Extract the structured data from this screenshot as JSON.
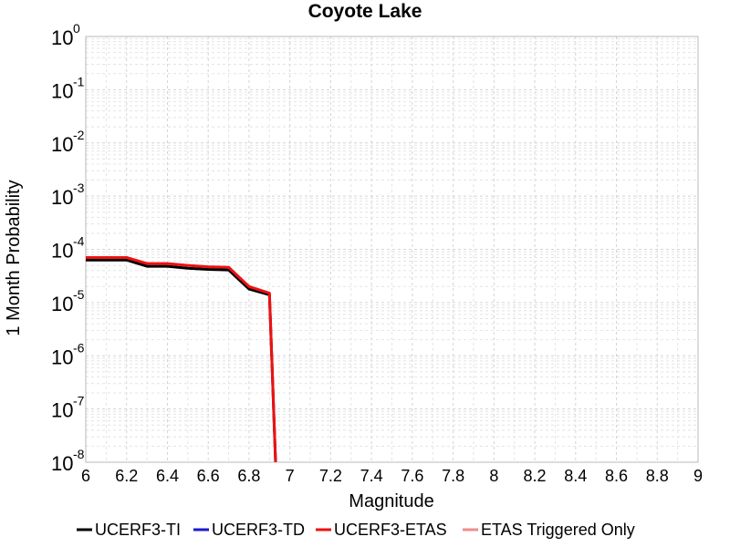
{
  "chart_data": {
    "type": "line",
    "title": "Coyote Lake",
    "xlabel": "Magnitude",
    "ylabel": "1 Month Probability",
    "xlim": [
      6,
      9
    ],
    "ylim": [
      1e-08,
      1
    ],
    "yscale": "log",
    "grid": true,
    "legend_position": "bottom",
    "x_ticks": [
      6,
      6.2,
      6.4,
      6.6,
      6.8,
      7,
      7.2,
      7.4,
      7.6,
      7.8,
      8,
      8.2,
      8.4,
      8.6,
      8.8,
      9
    ],
    "x_tick_labels": [
      "6",
      "6.2",
      "6.4",
      "6.6",
      "6.8",
      "7",
      "7.2",
      "7.4",
      "7.6",
      "7.8",
      "8",
      "8.2",
      "8.4",
      "8.6",
      "8.8",
      "9"
    ],
    "y_tick_exponents": [
      0,
      -1,
      -2,
      -3,
      -4,
      -5,
      -6,
      -7,
      -8
    ],
    "y_tick_base": "10",
    "series": [
      {
        "name": "UCERF3-TI",
        "color": "#000000",
        "x": [
          6.0,
          6.2,
          6.3,
          6.4,
          6.5,
          6.6,
          6.7,
          6.8,
          6.9,
          6.93
        ],
        "y": [
          6.3e-05,
          6.3e-05,
          4.8e-05,
          4.8e-05,
          4.4e-05,
          4.2e-05,
          4.1e-05,
          1.8e-05,
          1.4e-05,
          1e-08
        ]
      },
      {
        "name": "UCERF3-TD",
        "color": "#1a1ad0",
        "x": [
          6.0,
          6.2,
          6.3,
          6.4,
          6.5,
          6.6,
          6.7,
          6.8,
          6.9,
          6.93
        ],
        "y": [
          7e-05,
          7e-05,
          5.4e-05,
          5.4e-05,
          5e-05,
          4.7e-05,
          4.6e-05,
          2e-05,
          1.5e-05,
          1e-08
        ]
      },
      {
        "name": "UCERF3-ETAS",
        "color": "#ee1111",
        "x": [
          6.0,
          6.2,
          6.3,
          6.4,
          6.5,
          6.6,
          6.7,
          6.8,
          6.9,
          6.93
        ],
        "y": [
          7e-05,
          7e-05,
          5.4e-05,
          5.4e-05,
          5e-05,
          4.7e-05,
          4.6e-05,
          2e-05,
          1.5e-05,
          1e-08
        ]
      },
      {
        "name": "ETAS Triggered Only",
        "color": "#f08c8c",
        "x": [],
        "y": []
      }
    ]
  }
}
